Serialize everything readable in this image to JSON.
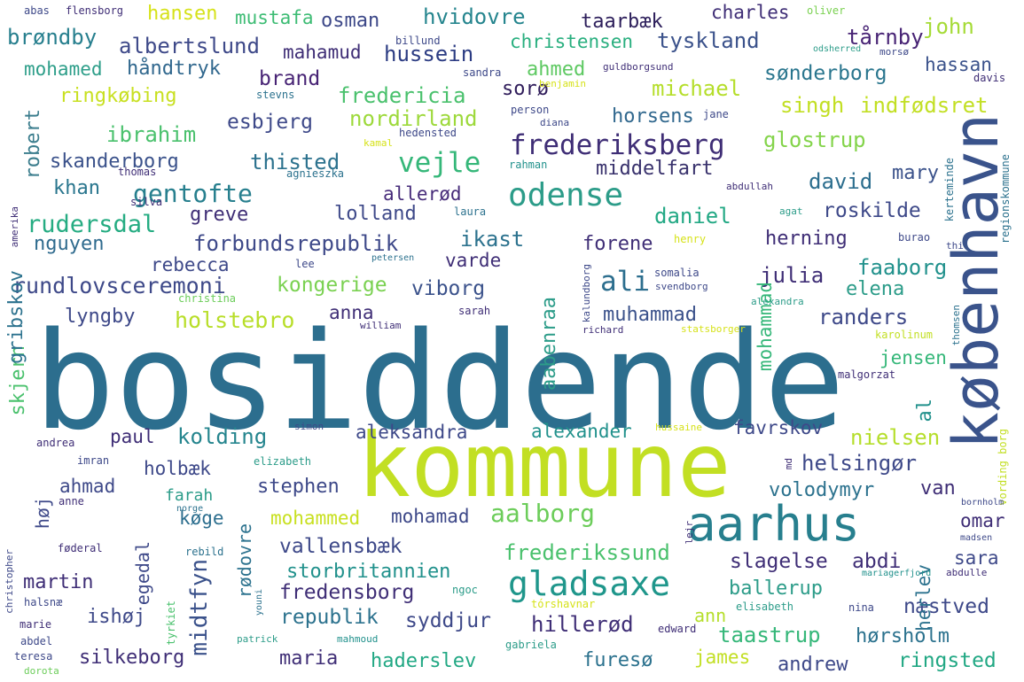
{
  "words": [
    {
      "text": "bosiddende",
      "color": "#2c6e8e"
    },
    {
      "text": "kommune",
      "color": "#c2df23"
    },
    {
      "text": "københavn",
      "color": "#3a538b"
    },
    {
      "text": "aarhus",
      "color": "#277f8e"
    },
    {
      "text": "gladsaxe",
      "color": "#1f968b"
    },
    {
      "text": "odense",
      "color": "#2c9c89"
    },
    {
      "text": "frederiksberg",
      "color": "#3f2e76"
    },
    {
      "text": "vejle",
      "color": "#35b779"
    },
    {
      "text": "gentofte",
      "color": "#277f8e"
    },
    {
      "text": "ali",
      "color": "#2c6e8e"
    },
    {
      "text": "aalborg",
      "color": "#6ccd5a"
    },
    {
      "text": "midtfyn",
      "color": "#3b528b"
    },
    {
      "text": "rundlovsceremoni",
      "color": "#3e4989"
    },
    {
      "text": "rudersdal",
      "color": "#25ac82"
    },
    {
      "text": "holstebro",
      "color": "#b8de29"
    },
    {
      "text": "kongerige",
      "color": "#7ad151"
    },
    {
      "text": "forbundsrepublik",
      "color": "#3e4989"
    },
    {
      "text": "indfødsret",
      "color": "#c2df23"
    },
    {
      "text": "skanderborg",
      "color": "#3b528b"
    },
    {
      "text": "thisted",
      "color": "#2c728e"
    },
    {
      "text": "nordirland",
      "color": "#9dd93b"
    },
    {
      "text": "fredericia",
      "color": "#4ac16d"
    },
    {
      "text": "ringkøbing",
      "color": "#c8e020"
    },
    {
      "text": "esbjerg",
      "color": "#3e4989"
    },
    {
      "text": "horsens",
      "color": "#31688e"
    },
    {
      "text": "hvidovre",
      "color": "#25858e"
    },
    {
      "text": "taarbæk",
      "color": "#2d1f5b"
    },
    {
      "text": "christensen",
      "color": "#29af7f"
    },
    {
      "text": "tyskland",
      "color": "#3b528b"
    },
    {
      "text": "tårnby",
      "color": "#482475"
    },
    {
      "text": "john",
      "color": "#a5db36"
    },
    {
      "text": "brøndby",
      "color": "#277f8e"
    },
    {
      "text": "albertslund",
      "color": "#3e4989"
    },
    {
      "text": "mahamud",
      "color": "#3f2e76"
    },
    {
      "text": "hussein",
      "color": "#2c3c83"
    },
    {
      "text": "osman",
      "color": "#3e4989"
    },
    {
      "text": "mustafa",
      "color": "#3dbc74"
    },
    {
      "text": "hansen",
      "color": "#d6e21a"
    },
    {
      "text": "charles",
      "color": "#3f2e76"
    },
    {
      "text": "mohamed",
      "color": "#2d9e89"
    },
    {
      "text": "håndtryk",
      "color": "#31688e"
    },
    {
      "text": "ahmed",
      "color": "#5ec962"
    },
    {
      "text": "brand",
      "color": "#482475"
    },
    {
      "text": "sønderborg",
      "color": "#2a768e"
    },
    {
      "text": "hassan",
      "color": "#3b528b"
    },
    {
      "text": "michael",
      "color": "#b5de2b"
    },
    {
      "text": "sorø",
      "color": "#2f1c5a"
    },
    {
      "text": "singh",
      "color": "#c2df23"
    },
    {
      "text": "robert",
      "color": "#3b7d8d"
    },
    {
      "text": "ibrahim",
      "color": "#4ac16d"
    },
    {
      "text": "glostrup",
      "color": "#84d44b"
    },
    {
      "text": "middelfart",
      "color": "#38316c"
    },
    {
      "text": "khan",
      "color": "#2a768e"
    },
    {
      "text": "david",
      "color": "#2c6e8e"
    },
    {
      "text": "mary",
      "color": "#3b528b"
    },
    {
      "text": "allerød",
      "color": "#472c7a"
    },
    {
      "text": "lolland",
      "color": "#3e4989"
    },
    {
      "text": "greve",
      "color": "#3f2e76"
    },
    {
      "text": "daniel",
      "color": "#22a884"
    },
    {
      "text": "roskilde",
      "color": "#3e4989"
    },
    {
      "text": "nguyen",
      "color": "#2f6b8e"
    },
    {
      "text": "ikast",
      "color": "#2c728e"
    },
    {
      "text": "forene",
      "color": "#3f2e76"
    },
    {
      "text": "herning",
      "color": "#3f2e76"
    },
    {
      "text": "rebecca",
      "color": "#3e4989"
    },
    {
      "text": "varde",
      "color": "#3f2e76"
    },
    {
      "text": "faaborg",
      "color": "#21918c"
    },
    {
      "text": "julia",
      "color": "#3f2e76"
    },
    {
      "text": "viborg",
      "color": "#3b528b"
    },
    {
      "text": "elena",
      "color": "#2c9c89"
    },
    {
      "text": "lyngby",
      "color": "#3e4989"
    },
    {
      "text": "anna",
      "color": "#3f2e76"
    },
    {
      "text": "muhammad",
      "color": "#3b528b"
    },
    {
      "text": "randers",
      "color": "#3e4989"
    },
    {
      "text": "jensen",
      "color": "#35b779"
    },
    {
      "text": "paul",
      "color": "#3f2e76"
    },
    {
      "text": "kolding",
      "color": "#25858e"
    },
    {
      "text": "aleksandra",
      "color": "#3e4989"
    },
    {
      "text": "alexander",
      "color": "#21918c"
    },
    {
      "text": "favrskov",
      "color": "#3e4989"
    },
    {
      "text": "nielsen",
      "color": "#b5de2b"
    },
    {
      "text": "holbæk",
      "color": "#3e4989"
    },
    {
      "text": "helsingør",
      "color": "#3e4989"
    },
    {
      "text": "ahmad",
      "color": "#3e4989"
    },
    {
      "text": "stephen",
      "color": "#3e4989"
    },
    {
      "text": "volodymyr",
      "color": "#2c728e"
    },
    {
      "text": "farah",
      "color": "#2c9c89"
    },
    {
      "text": "van",
      "color": "#3f2e76"
    },
    {
      "text": "mohammed",
      "color": "#c8e020"
    },
    {
      "text": "mohamad",
      "color": "#3e4989"
    },
    {
      "text": "køge",
      "color": "#2c6e8e"
    },
    {
      "text": "omar",
      "color": "#3f2e76"
    },
    {
      "text": "vallensbæk",
      "color": "#3e4989"
    },
    {
      "text": "frederikssund",
      "color": "#4ac16d"
    },
    {
      "text": "slagelse",
      "color": "#3f2e76"
    },
    {
      "text": "abdi",
      "color": "#3f2e76"
    },
    {
      "text": "sara",
      "color": "#3e4989"
    },
    {
      "text": "storbritannien",
      "color": "#21918c"
    },
    {
      "text": "martin",
      "color": "#3f2e76"
    },
    {
      "text": "fredensborg",
      "color": "#3f2e76"
    },
    {
      "text": "ballerup",
      "color": "#2c9c89"
    },
    {
      "text": "republik",
      "color": "#2c728e"
    },
    {
      "text": "syddjur",
      "color": "#3e4989"
    },
    {
      "text": "hillerød",
      "color": "#3f2e76"
    },
    {
      "text": "næstved",
      "color": "#3e4989"
    },
    {
      "text": "ishøj",
      "color": "#3e4989"
    },
    {
      "text": "taastrup",
      "color": "#35b779"
    },
    {
      "text": "hørsholm",
      "color": "#2c728e"
    },
    {
      "text": "silkeborg",
      "color": "#3f2e76"
    },
    {
      "text": "maria",
      "color": "#3f2e76"
    },
    {
      "text": "haderslev",
      "color": "#22a884"
    },
    {
      "text": "furesø",
      "color": "#2c728e"
    },
    {
      "text": "james",
      "color": "#c2df23"
    },
    {
      "text": "andrew",
      "color": "#3e4989"
    },
    {
      "text": "ringsted",
      "color": "#22a884"
    },
    {
      "text": "ann",
      "color": "#b5de2b"
    },
    {
      "text": "vording borg",
      "color": "#c2df23"
    },
    {
      "text": "skjern",
      "color": "#4ac16d"
    },
    {
      "text": "gribskov",
      "color": "#2c728e"
    },
    {
      "text": "høj",
      "color": "#3e4989"
    },
    {
      "text": "egedal",
      "color": "#3e4989"
    },
    {
      "text": "rødovre",
      "color": "#2c728e"
    },
    {
      "text": "aabenraa",
      "color": "#2c9c89"
    },
    {
      "text": "mohammad",
      "color": "#35b779"
    },
    {
      "text": "herlev",
      "color": "#2c728e"
    },
    {
      "text": "al",
      "color": "#21918c"
    },
    {
      "text": "abas",
      "color": "#3e4989"
    },
    {
      "text": "flensborg",
      "color": "#3f2e76"
    },
    {
      "text": "oliver",
      "color": "#7ad151"
    },
    {
      "text": "billund",
      "color": "#3e4989"
    },
    {
      "text": "sandra",
      "color": "#3e4989"
    },
    {
      "text": "guldborgsund",
      "color": "#3f2e76"
    },
    {
      "text": "odsherred",
      "color": "#2c9c89"
    },
    {
      "text": "morsø",
      "color": "#3e4989"
    },
    {
      "text": "stevns",
      "color": "#2c728e"
    },
    {
      "text": "benjamin",
      "color": "#d6e21a"
    },
    {
      "text": "davis",
      "color": "#3f2e76"
    },
    {
      "text": "person",
      "color": "#3e4989"
    },
    {
      "text": "diana",
      "color": "#3e4989"
    },
    {
      "text": "jane",
      "color": "#3e4989"
    },
    {
      "text": "hedensted",
      "color": "#3e4989"
    },
    {
      "text": "kamal",
      "color": "#d6e21a"
    },
    {
      "text": "rahman",
      "color": "#21918c"
    },
    {
      "text": "thomas",
      "color": "#3f2e76"
    },
    {
      "text": "agnieszka",
      "color": "#2c728e"
    },
    {
      "text": "abdullah",
      "color": "#3f2e76"
    },
    {
      "text": "silva",
      "color": "#3f2e76"
    },
    {
      "text": "laura",
      "color": "#2c728e"
    },
    {
      "text": "agat",
      "color": "#2c9c89"
    },
    {
      "text": "henry",
      "color": "#d6e21a"
    },
    {
      "text": "burao",
      "color": "#3e4989"
    },
    {
      "text": "thi",
      "color": "#3e4989"
    },
    {
      "text": "petersen",
      "color": "#2c728e"
    },
    {
      "text": "lee",
      "color": "#3e4989"
    },
    {
      "text": "somalia",
      "color": "#3e4989"
    },
    {
      "text": "svendborg",
      "color": "#3e4989"
    },
    {
      "text": "christina",
      "color": "#6ccd5a"
    },
    {
      "text": "alexandra",
      "color": "#2c9c89"
    },
    {
      "text": "sarah",
      "color": "#3f2e76"
    },
    {
      "text": "william",
      "color": "#3f2e76"
    },
    {
      "text": "richard",
      "color": "#3f2e76"
    },
    {
      "text": "statsborger",
      "color": "#d6e21a"
    },
    {
      "text": "karolinum",
      "color": "#c2df23"
    },
    {
      "text": "malgorzat",
      "color": "#3f2e76"
    },
    {
      "text": "simon",
      "color": "#3e4989"
    },
    {
      "text": "hussaine",
      "color": "#d6e21a"
    },
    {
      "text": "andrea",
      "color": "#3f2e76"
    },
    {
      "text": "imran",
      "color": "#3e4989"
    },
    {
      "text": "elizabeth",
      "color": "#2c9c89"
    },
    {
      "text": "md",
      "color": "#3f2e76"
    },
    {
      "text": "anne",
      "color": "#3f2e76"
    },
    {
      "text": "norge",
      "color": "#2c728e"
    },
    {
      "text": "bornholm",
      "color": "#3e4989"
    },
    {
      "text": "føderal",
      "color": "#3f2e76"
    },
    {
      "text": "rebild",
      "color": "#2c728e"
    },
    {
      "text": "madsen",
      "color": "#3e4989"
    },
    {
      "text": "mariagerfjord",
      "color": "#21918c"
    },
    {
      "text": "abdulle",
      "color": "#3f2e76"
    },
    {
      "text": "ngoc",
      "color": "#2c9c89"
    },
    {
      "text": "halsnæ",
      "color": "#3e4989"
    },
    {
      "text": "youni",
      "color": "#2c728e"
    },
    {
      "text": "tórshavnar",
      "color": "#d6e21a"
    },
    {
      "text": "elisabeth",
      "color": "#2c9c89"
    },
    {
      "text": "nina",
      "color": "#3e4989"
    },
    {
      "text": "marie",
      "color": "#3f2e76"
    },
    {
      "text": "tyrkiet",
      "color": "#4ac16d"
    },
    {
      "text": "abdel",
      "color": "#3e4989"
    },
    {
      "text": "patrick",
      "color": "#2c9c89"
    },
    {
      "text": "mahmoud",
      "color": "#21918c"
    },
    {
      "text": "edward",
      "color": "#3f2e76"
    },
    {
      "text": "gabriela",
      "color": "#2c9c89"
    },
    {
      "text": "teresa",
      "color": "#3e4989"
    },
    {
      "text": "dorota",
      "color": "#6ccd5a"
    },
    {
      "text": "christopher",
      "color": "#3e4989"
    },
    {
      "text": "amerika",
      "color": "#3f2e76"
    },
    {
      "text": "kalundborg",
      "color": "#3e4989"
    },
    {
      "text": "kerteminde",
      "color": "#2c728e"
    },
    {
      "text": "regionskommune",
      "color": "#2c728e"
    },
    {
      "text": "thomsen",
      "color": "#2c728e"
    },
    {
      "text": "lejr",
      "color": "#3f2e76"
    }
  ]
}
